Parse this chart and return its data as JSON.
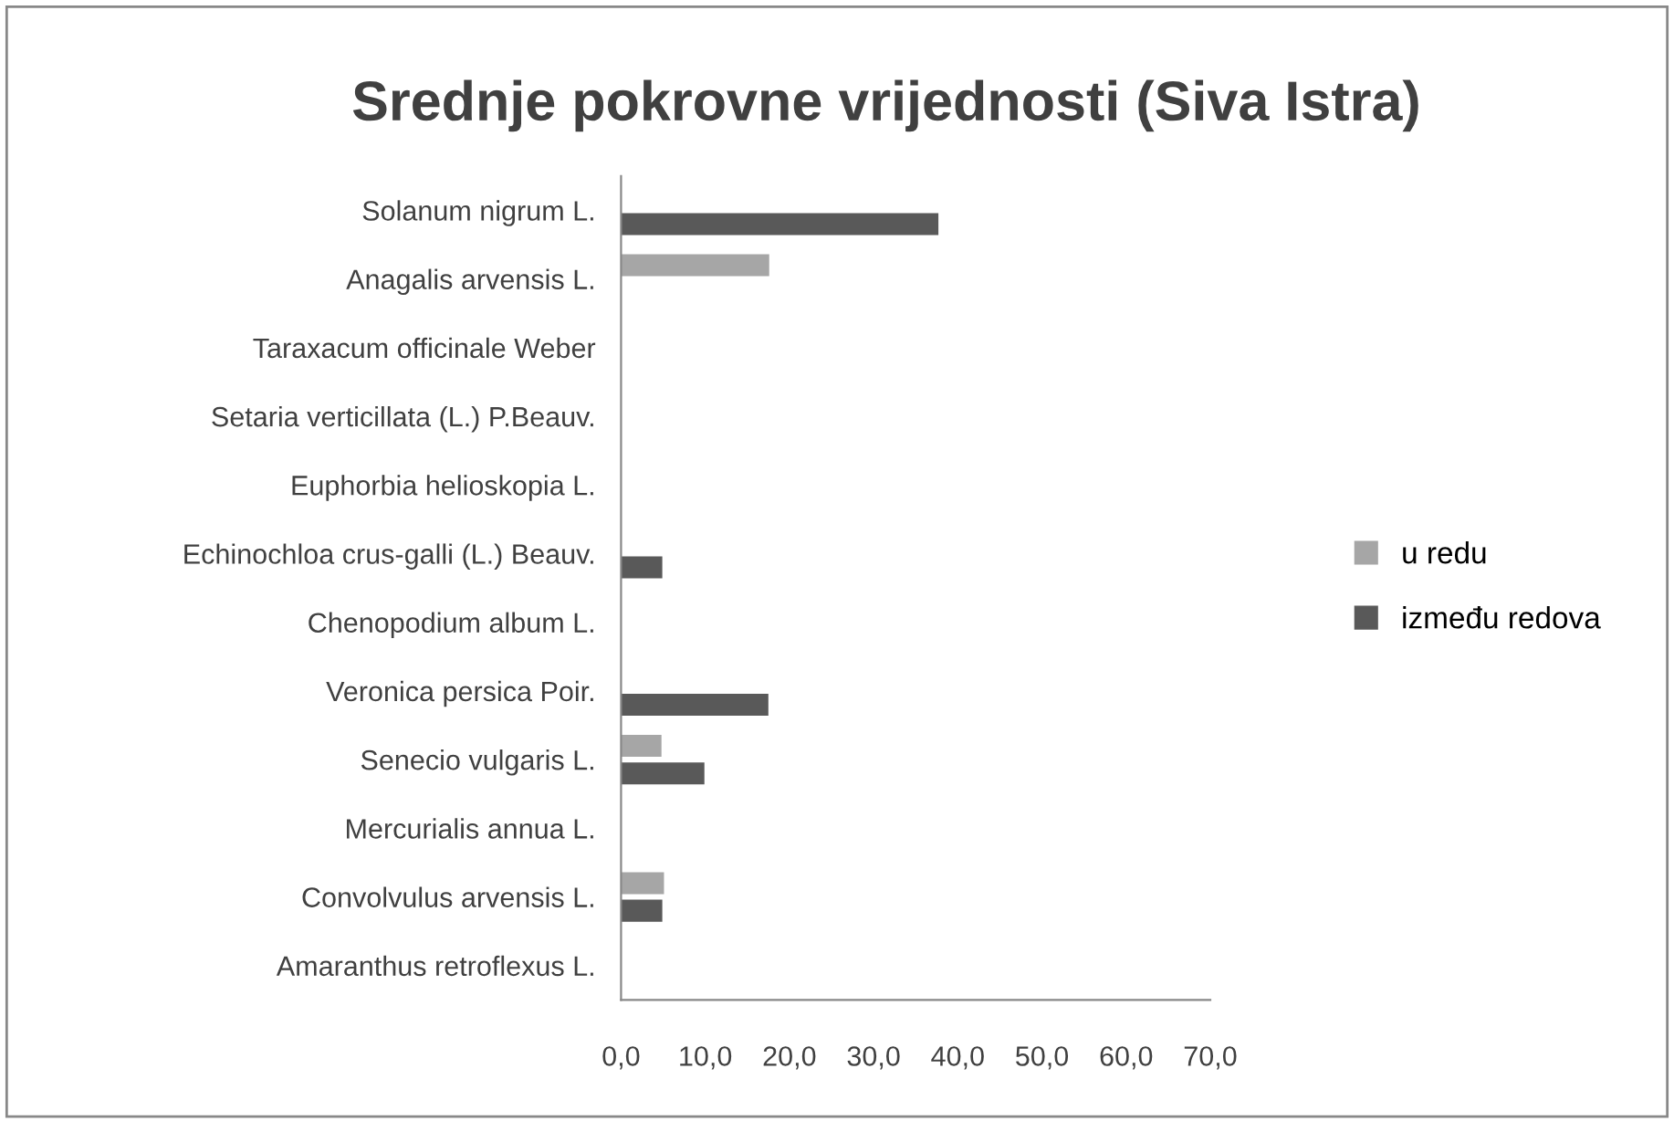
{
  "chart_data": {
    "type": "bar",
    "orientation": "horizontal",
    "title": "Srednje pokrovne vrijednosti (Siva Istra)",
    "categories": [
      "Solanum nigrum L.",
      "Anagalis arvensis L.",
      "Taraxacum officinale Weber",
      "Setaria verticillata (L.) P.Beauv.",
      "Euphorbia helioskopia L.",
      "Echinochloa crus-galli (L.) Beauv.",
      "Chenopodium album L.",
      "Veronica persica Poir.",
      "Senecio vulgaris L.",
      "Mercurialis annua L.",
      "Convolvulus arvensis L.",
      "Amaranthus retroflexus L."
    ],
    "series": [
      {
        "name": "u redu",
        "color": "#a6a6a6",
        "values": [
          0,
          17.6,
          0,
          0,
          0,
          0,
          null,
          0,
          4.8,
          0,
          5.1,
          null
        ]
      },
      {
        "name": "između redova",
        "color": "#595959",
        "values": [
          37.7,
          0,
          0,
          null,
          0,
          4.9,
          0,
          17.5,
          9.9,
          null,
          4.9,
          null
        ]
      }
    ],
    "xlim": [
      0,
      70
    ],
    "xticks": [
      {
        "value": 0,
        "label": "0,0"
      },
      {
        "value": 10,
        "label": "10,0"
      },
      {
        "value": 20,
        "label": "20,0"
      },
      {
        "value": 30,
        "label": "30,0"
      },
      {
        "value": 40,
        "label": "40,0"
      },
      {
        "value": 50,
        "label": "50,0"
      },
      {
        "value": 60,
        "label": "60,0"
      },
      {
        "value": 70,
        "label": "70,0"
      }
    ],
    "grid": false,
    "legend": "right"
  }
}
